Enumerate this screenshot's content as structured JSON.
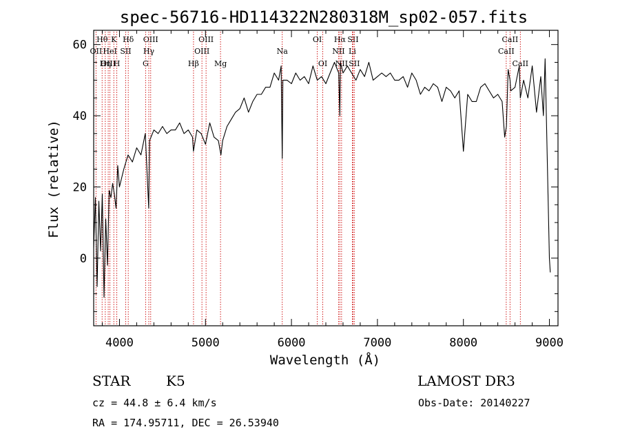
{
  "chart_data": {
    "type": "line",
    "title": "spec-56716-HD114322N280318M_sp02-057.fits",
    "xlabel": "Wavelength (Å)",
    "ylabel": "Flux (relative)",
    "xlim": [
      3700,
      9100
    ],
    "ylim": [
      -19,
      64
    ],
    "x_ticks": [
      4000,
      5000,
      6000,
      7000,
      8000,
      9000
    ],
    "x_tick_labels": [
      "4000",
      "5000",
      "6000",
      "7000",
      "8000",
      "9000"
    ],
    "y_ticks": [
      0,
      20,
      40,
      60
    ],
    "y_tick_labels": [
      "0",
      "20",
      "40",
      "60"
    ],
    "series": [
      {
        "name": "flux",
        "x": [
          3700,
          3720,
          3740,
          3760,
          3780,
          3800,
          3820,
          3840,
          3860,
          3880,
          3900,
          3920,
          3940,
          3960,
          3980,
          4000,
          4050,
          4100,
          4150,
          4200,
          4250,
          4300,
          4340,
          4350,
          4400,
          4450,
          4500,
          4550,
          4600,
          4650,
          4700,
          4750,
          4800,
          4850,
          4860,
          4900,
          4950,
          5000,
          5050,
          5100,
          5150,
          5180,
          5200,
          5250,
          5300,
          5350,
          5400,
          5450,
          5500,
          5550,
          5600,
          5650,
          5700,
          5750,
          5800,
          5850,
          5880,
          5893,
          5900,
          5950,
          6000,
          6050,
          6100,
          6150,
          6200,
          6250,
          6300,
          6350,
          6400,
          6450,
          6500,
          6550,
          6563,
          6570,
          6600,
          6650,
          6700,
          6750,
          6800,
          6850,
          6900,
          6950,
          7000,
          7050,
          7100,
          7150,
          7200,
          7250,
          7300,
          7350,
          7400,
          7450,
          7500,
          7550,
          7600,
          7650,
          7700,
          7750,
          7800,
          7850,
          7900,
          7950,
          8000,
          8050,
          8100,
          8150,
          8200,
          8250,
          8300,
          8350,
          8400,
          8450,
          8480,
          8500,
          8520,
          8542,
          8550,
          8600,
          8650,
          8662,
          8700,
          8750,
          8800,
          8850,
          8900,
          8930,
          8950,
          9000,
          9010
        ],
        "y": [
          3,
          17,
          -8,
          16,
          2,
          18,
          -11,
          11,
          -2,
          19,
          17,
          21,
          18,
          14,
          26,
          20,
          25,
          29,
          27,
          31,
          29,
          35,
          14,
          33,
          36,
          35,
          37,
          35,
          36,
          36,
          38,
          35,
          36,
          34,
          30,
          36,
          35,
          32,
          38,
          34,
          33,
          29,
          33,
          37,
          39,
          41,
          42,
          45,
          41,
          44,
          46,
          46,
          48,
          48,
          52,
          50,
          54,
          28,
          50,
          50,
          49,
          52,
          50,
          51,
          49,
          54,
          50,
          51,
          49,
          52,
          55,
          52,
          40,
          55,
          52,
          54,
          52,
          50,
          53,
          51,
          55,
          50,
          51,
          52,
          51,
          52,
          50,
          50,
          51,
          48,
          52,
          50,
          46,
          48,
          47,
          49,
          48,
          44,
          48,
          47,
          45,
          47,
          30,
          46,
          44,
          44,
          48,
          49,
          47,
          45,
          46,
          44,
          34,
          37,
          53,
          50,
          47,
          48,
          54,
          45,
          50,
          45,
          54,
          41,
          51,
          40,
          56,
          0,
          -4
        ]
      }
    ],
    "spectral_lines": [
      {
        "label": "Hθ",
        "x": 3798,
        "row": 0
      },
      {
        "label": "OII",
        "x": 3727,
        "row": 1
      },
      {
        "label": "OIII",
        "x": 3869,
        "row": 2
      },
      {
        "label": "K",
        "x": 3934,
        "row": 0
      },
      {
        "label": "HeI",
        "x": 3889,
        "row": 1
      },
      {
        "label": "Hη",
        "x": 3835,
        "row": 2
      },
      {
        "label": "SII",
        "x": 4072,
        "row": 1
      },
      {
        "label": "H",
        "x": 3969,
        "row": 2
      },
      {
        "label": "Hδ",
        "x": 4102,
        "row": 0
      },
      {
        "label": "OIII",
        "x": 4363,
        "row": 0
      },
      {
        "label": "Hγ",
        "x": 4341,
        "row": 1
      },
      {
        "label": "G",
        "x": 4304,
        "row": 2
      },
      {
        "label": "OIII",
        "x": 5007,
        "row": 0
      },
      {
        "label": "OIII",
        "x": 4959,
        "row": 1
      },
      {
        "label": "Hβ",
        "x": 4861,
        "row": 2
      },
      {
        "label": "Mg",
        "x": 5175,
        "row": 2
      },
      {
        "label": "Na",
        "x": 5893,
        "row": 1
      },
      {
        "label": "OI",
        "x": 6300,
        "row": 0
      },
      {
        "label": "OI",
        "x": 6364,
        "row": 2
      },
      {
        "label": "Hα",
        "x": 6563,
        "row": 0
      },
      {
        "label": "SII",
        "x": 6716,
        "row": 0
      },
      {
        "label": "NII",
        "x": 6548,
        "row": 1
      },
      {
        "label": "Li",
        "x": 6708,
        "row": 1
      },
      {
        "label": "NII",
        "x": 6583,
        "row": 2
      },
      {
        "label": "SII",
        "x": 6731,
        "row": 2
      },
      {
        "label": "CaII",
        "x": 8542,
        "row": 0
      },
      {
        "label": "CaII",
        "x": 8498,
        "row": 1
      },
      {
        "label": "CaII",
        "x": 8662,
        "row": 2
      }
    ]
  },
  "info": {
    "class": "STAR",
    "subclass": "K5",
    "survey": "LAMOST DR3",
    "cz": "cz = 44.8 ± 6.4 km/s",
    "obs_date": "Obs-Date: 20140227",
    "coords": "RA = 174.95711, DEC =  26.53940"
  },
  "colors": {
    "spectrum": "#000000",
    "lines": "#cc0000",
    "axes": "#000000"
  }
}
